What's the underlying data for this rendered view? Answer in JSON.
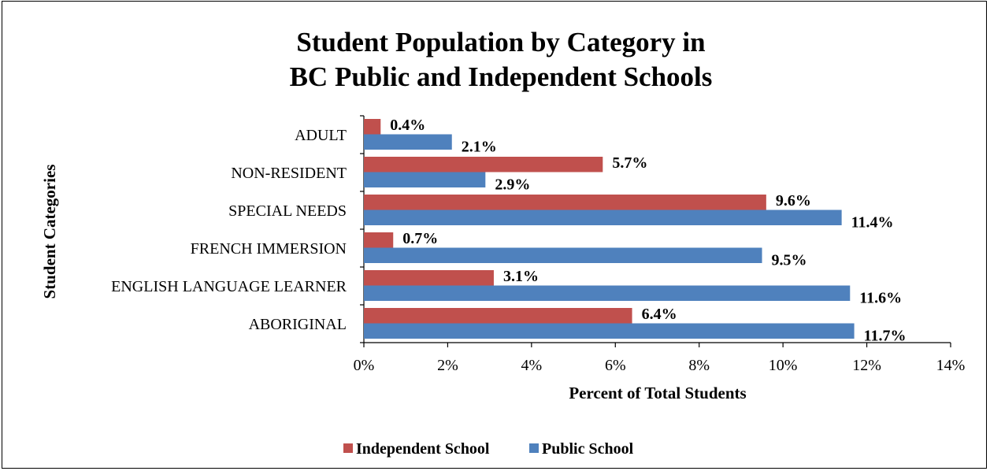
{
  "chart_data": {
    "type": "bar",
    "orientation": "horizontal",
    "title_lines": [
      "Student Population by Category in",
      "BC Public and Independent Schools"
    ],
    "xlabel": "Percent of Total Students",
    "ylabel": "Student Categories",
    "categories": [
      "ADULT",
      "NON-RESIDENT",
      "SPECIAL NEEDS",
      "FRENCH IMMERSION",
      "ENGLISH LANGUAGE LEARNER",
      "ABORIGINAL"
    ],
    "series": [
      {
        "name": "Independent School",
        "color": "#C0504D",
        "values": [
          0.4,
          5.7,
          9.6,
          0.7,
          3.1,
          6.4
        ],
        "labels": [
          "0.4%",
          "5.7%",
          "9.6%",
          "0.7%",
          "3.1%",
          "6.4%"
        ]
      },
      {
        "name": "Public School",
        "color": "#4F81BD",
        "values": [
          2.1,
          2.9,
          11.4,
          9.5,
          11.6,
          11.7
        ],
        "labels": [
          "2.1%",
          "2.9%",
          "11.4%",
          "9.5%",
          "11.6%",
          "11.7%"
        ]
      }
    ],
    "xlim": [
      0,
      14
    ],
    "xticks": [
      0,
      2,
      4,
      6,
      8,
      10,
      12,
      14
    ],
    "xtick_labels": [
      "0%",
      "2%",
      "4%",
      "6%",
      "8%",
      "10%",
      "12%",
      "14%"
    ],
    "grid": false,
    "legend_position": "bottom"
  }
}
